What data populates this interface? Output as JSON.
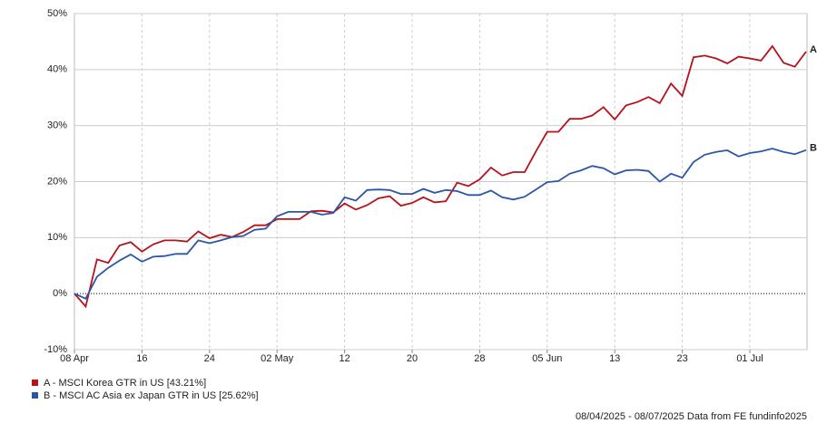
{
  "chart_data": {
    "type": "line",
    "categories": [
      "08 Apr",
      null,
      null,
      null,
      null,
      null,
      "16",
      null,
      null,
      null,
      null,
      null,
      "24",
      null,
      null,
      null,
      null,
      null,
      "02 May",
      null,
      null,
      null,
      null,
      null,
      "12",
      null,
      null,
      null,
      null,
      null,
      "20",
      null,
      null,
      null,
      null,
      null,
      "28",
      null,
      null,
      null,
      null,
      null,
      "05 Jun",
      null,
      null,
      null,
      null,
      null,
      "13",
      null,
      null,
      null,
      null,
      null,
      "23",
      null,
      null,
      null,
      null,
      null,
      "01 Jul",
      null,
      null,
      null,
      null,
      null
    ],
    "series": [
      {
        "name": "A - MSCI Korea GTR in US [43.21%]",
        "end_label": "A",
        "color": "#b5121b",
        "values": [
          0,
          -2.3,
          6.1,
          5.5,
          8.6,
          9.2,
          7.5,
          8.8,
          9.5,
          9.5,
          9.3,
          11.1,
          9.9,
          10.5,
          10.1,
          11.0,
          12.2,
          12.2,
          13.3,
          13.3,
          13.3,
          14.7,
          14.8,
          14.5,
          16.1,
          15.0,
          15.8,
          17.0,
          17.4,
          15.7,
          16.2,
          17.2,
          16.3,
          16.5,
          19.8,
          19.2,
          20.4,
          22.5,
          21.1,
          21.7,
          21.7,
          25.4,
          28.9,
          28.9,
          31.2,
          31.2,
          31.8,
          33.3,
          31.1,
          33.6,
          34.2,
          35.1,
          34.0,
          37.5,
          35.3,
          42.2,
          42.5,
          42.0,
          41.1,
          42.3,
          42.0,
          41.6,
          44.2,
          41.2,
          40.5,
          43.21
        ]
      },
      {
        "name": "B - MSCI AC Asia ex Japan GTR in US [25.62%]",
        "end_label": "B",
        "color": "#2b55a7",
        "values": [
          0,
          -0.9,
          3.0,
          4.6,
          5.9,
          7.0,
          5.7,
          6.6,
          6.7,
          7.1,
          7.1,
          9.5,
          9.0,
          9.5,
          10.1,
          10.3,
          11.4,
          11.6,
          13.8,
          14.6,
          14.6,
          14.6,
          14.1,
          14.4,
          17.2,
          16.6,
          18.5,
          18.6,
          18.5,
          17.8,
          17.8,
          18.7,
          18.0,
          18.5,
          18.3,
          17.6,
          17.6,
          18.4,
          17.2,
          16.8,
          17.3,
          18.6,
          19.9,
          20.1,
          21.4,
          22.0,
          22.8,
          22.4,
          21.3,
          22.0,
          22.1,
          21.9,
          20.0,
          21.4,
          20.7,
          23.5,
          24.8,
          25.3,
          25.6,
          24.5,
          25.1,
          25.4,
          25.9,
          25.3,
          24.9,
          25.62
        ]
      }
    ],
    "ylim": [
      -10,
      50
    ],
    "yticks": [
      {
        "value": -10,
        "label": "-10%"
      },
      {
        "value": 0,
        "label": "0%"
      },
      {
        "value": 10,
        "label": "10%"
      },
      {
        "value": 20,
        "label": "20%"
      },
      {
        "value": 30,
        "label": "30%"
      },
      {
        "value": 40,
        "label": "40%"
      },
      {
        "value": 50,
        "label": "50%"
      }
    ],
    "grid": true,
    "source": "08/04/2025 - 08/07/2025 Data from FE fundinfo2025"
  }
}
